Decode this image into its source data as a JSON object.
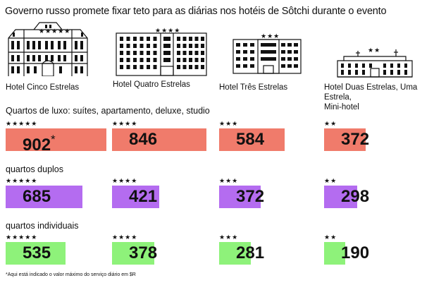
{
  "title": "Governo russo promete fixar teto para as diárias nos hotéis de Sôtchi durante o evento",
  "hotels": [
    {
      "label": "Hotel Cinco Estrelas",
      "stars": "★★★★★",
      "icon": "five-star-hotel-icon"
    },
    {
      "label": "Hotel Quatro Estrelas",
      "stars": "★★★★",
      "icon": "four-star-hotel-icon"
    },
    {
      "label": "Hotel Três Estrelas",
      "stars": "★★★",
      "icon": "three-star-hotel-icon"
    },
    {
      "label_line1": "Hotel Duas Estrelas, Uma Estrela,",
      "label_line2": "Mini-hotel",
      "stars": "★★",
      "icon": "two-star-hotel-icon"
    }
  ],
  "colors": {
    "luxo": "#f07b6b",
    "duplos": "#b46cf0",
    "individuais": "#8ef27a"
  },
  "footnote": "*Aqui está indicado o valor máximo do serviço diário em $R",
  "asterisk": "*",
  "chart_data": {
    "type": "bar",
    "unit": "R$",
    "categories": [
      "★★★★★",
      "★★★★",
      "★★★",
      "★★"
    ],
    "series": [
      {
        "name": "Quartos de luxo: suítes, apartamento, deluxe, studio",
        "values": [
          902,
          846,
          584,
          372
        ]
      },
      {
        "name": "quartos duplos",
        "values": [
          685,
          421,
          372,
          298
        ]
      },
      {
        "name": "quartos individuais",
        "values": [
          535,
          378,
          281,
          190
        ]
      }
    ]
  }
}
